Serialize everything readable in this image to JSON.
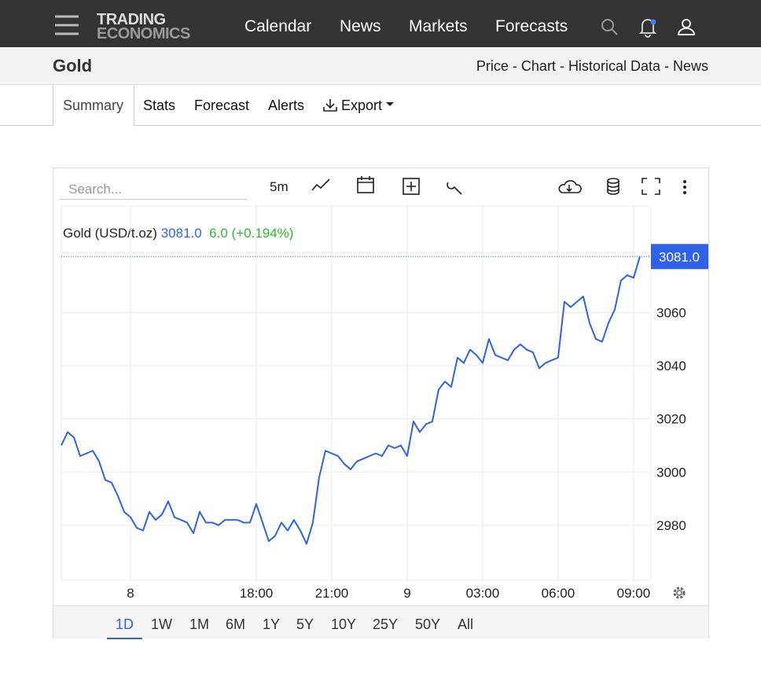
{
  "header": {
    "logo": [
      "TRADING",
      "ECONOMICS"
    ],
    "nav": [
      "Calendar",
      "News",
      "Markets",
      "Forecasts"
    ]
  },
  "page": {
    "title": "Gold",
    "links": [
      "Price",
      "Chart",
      "Historical Data",
      "News"
    ],
    "separator": "-"
  },
  "tabs": [
    "Summary",
    "Stats",
    "Forecast",
    "Alerts",
    "Export"
  ],
  "toolbar": {
    "search_placeholder": "Search...",
    "interval": "5m"
  },
  "chart_data": {
    "type": "line",
    "grid": true,
    "log_scale": false,
    "series": [
      {
        "name": "Gold (USD/t.oz)",
        "color": "#2f62e9",
        "values": [
          3010,
          3015,
          3013,
          3006,
          3007,
          3008,
          3004,
          2997,
          2996,
          2991,
          2985,
          2983,
          2979,
          2978,
          2985,
          2982,
          2984,
          2989,
          2983,
          2982,
          2981,
          2977,
          2985,
          2981,
          2981,
          2980,
          2982,
          2982,
          2982,
          2981,
          2981,
          2988,
          2981,
          2974,
          2976,
          2981,
          2978,
          2982,
          2978,
          2973,
          2981,
          2998,
          3008,
          3007,
          3006,
          3003,
          3001,
          3004,
          3005,
          3006,
          3007,
          3006,
          3010,
          3009,
          3010,
          3006,
          3019,
          3015,
          3018,
          3019,
          3031,
          3034,
          3032,
          3043,
          3041,
          3046,
          3044,
          3041,
          3050,
          3044,
          3043,
          3042,
          3046,
          3048,
          3046,
          3045,
          3039,
          3041,
          3042,
          3043,
          3064,
          3062,
          3064,
          3066,
          3056,
          3050,
          3049,
          3056,
          3061,
          3072,
          3074,
          3073,
          3081
        ]
      }
    ],
    "x": [
      10.25,
      10.5,
      10.75,
      11,
      11.25,
      11.5,
      11.75,
      12,
      12.25,
      12.5,
      12.75,
      13,
      13.25,
      13.5,
      13.75,
      14,
      14.25,
      14.5,
      14.75,
      15,
      15.25,
      15.5,
      15.75,
      16,
      16.25,
      16.5,
      16.75,
      17,
      17.25,
      17.5,
      17.75,
      18,
      18.25,
      18.5,
      18.75,
      19,
      19.25,
      19.5,
      19.75,
      20,
      20.25,
      20.5,
      20.75,
      21,
      21.25,
      21.5,
      21.75,
      22,
      22.25,
      22.5,
      22.75,
      23,
      23.25,
      23.5,
      23.75,
      24,
      24.25,
      24.5,
      24.75,
      25,
      25.25,
      25.5,
      25.75,
      26,
      26.25,
      26.5,
      26.75,
      27,
      27.25,
      27.5,
      27.75,
      28,
      28.25,
      28.5,
      28.75,
      29,
      29.25,
      29.5,
      29.75,
      30,
      30.25,
      30.5,
      30.75,
      31,
      31.25,
      31.5,
      31.75,
      32,
      32.25,
      32.5,
      32.75,
      33,
      33.25
    ],
    "current": {
      "value": 3081,
      "label": "3081.0"
    },
    "change": {
      "value": 6,
      "label": "6.0"
    },
    "change_pct": {
      "value": 0.194,
      "label": "(+0.194%)"
    },
    "change_color": "#2eb82e",
    "xlim": [
      10.25,
      33.69
    ],
    "xticks": [
      {
        "value": 13,
        "label": "8"
      },
      {
        "value": 18,
        "label": "18:00"
      },
      {
        "value": 21,
        "label": "21:00"
      },
      {
        "value": 24,
        "label": "9"
      },
      {
        "value": 27,
        "label": "03:00"
      },
      {
        "value": 30,
        "label": "06:00"
      },
      {
        "value": 33,
        "label": "09:00"
      }
    ],
    "ylim": [
      2959.3,
      3100
    ],
    "yticks": [
      2980,
      3000,
      3020,
      3040,
      3060
    ]
  },
  "ranges": [
    "1D",
    "1W",
    "1M",
    "6M",
    "1Y",
    "5Y",
    "10Y",
    "25Y",
    "50Y",
    "All"
  ]
}
